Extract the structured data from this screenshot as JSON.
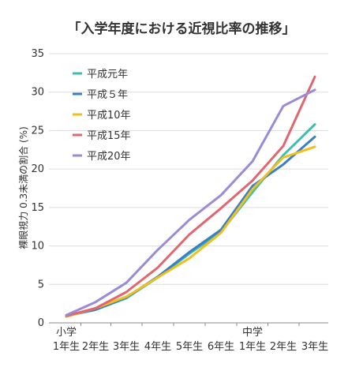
{
  "chart_data": {
    "type": "line",
    "title": "「入学年度における近視比率の推移」",
    "ylabel": "裸眼視力 0.3未満の割合 (%)",
    "xlabel": "",
    "ylim": [
      0,
      35
    ],
    "yticks": [
      "0",
      "5",
      "10",
      "15",
      "20",
      "25",
      "30",
      "35"
    ],
    "categories": [
      "1年生",
      "2年生",
      "3年生",
      "4年生",
      "5年生",
      "6年生",
      "1年生",
      "2年生",
      "3年生"
    ],
    "group_labels": [
      {
        "label": "小学",
        "start_index": 0
      },
      {
        "label": "中学",
        "start_index": 6
      }
    ],
    "grid": true,
    "legend_position": "top-left",
    "series": [
      {
        "name": "平成元年",
        "color": "#3dbfb0",
        "values": [
          0.9,
          1.7,
          3.2,
          5.9,
          9.0,
          11.8,
          17.0,
          21.8,
          25.8
        ]
      },
      {
        "name": "平成５年",
        "color": "#3a7fc4",
        "values": [
          0.9,
          1.7,
          3.3,
          6.0,
          9.2,
          12.1,
          17.8,
          20.6,
          24.2
        ]
      },
      {
        "name": "平成10年",
        "color": "#f2c01c",
        "values": [
          0.8,
          1.9,
          3.4,
          5.9,
          8.4,
          11.7,
          17.4,
          21.5,
          22.9
        ]
      },
      {
        "name": "平成15年",
        "color": "#e06670",
        "values": [
          0.9,
          1.9,
          4.0,
          7.2,
          11.5,
          14.9,
          18.5,
          23.0,
          32.0
        ]
      },
      {
        "name": "平成20年",
        "color": "#9b8ad6",
        "values": [
          1.0,
          2.7,
          5.2,
          9.5,
          13.4,
          16.6,
          21.0,
          28.2,
          30.3
        ]
      }
    ]
  }
}
